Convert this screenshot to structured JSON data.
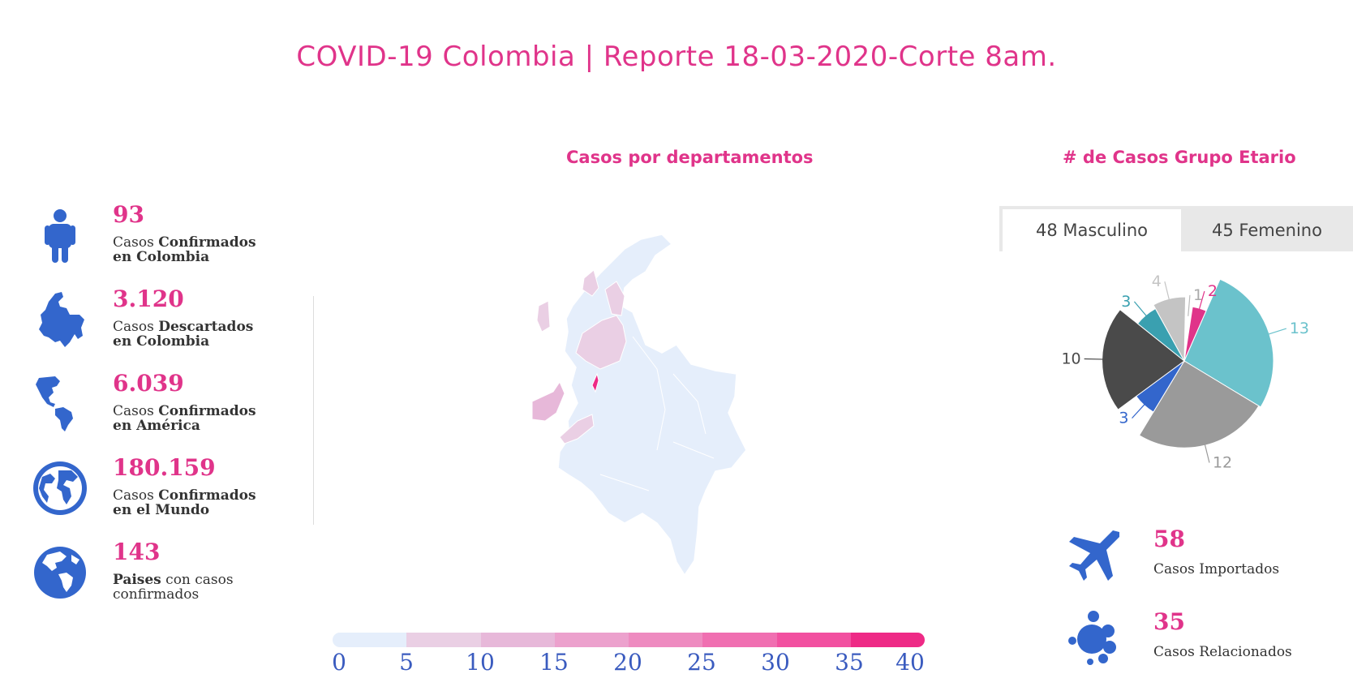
{
  "title": "COVID-19 Colombia | Reporte 18-03-2020-Corte 8am.",
  "map_section": {
    "title": "Casos por departamentos"
  },
  "age_section": {
    "title": "# de Casos Grupo Etario"
  },
  "stats": [
    {
      "value": "93",
      "label_plain": "Casos ",
      "label_bold": "Confirmados",
      "label_line2": "en Colombia",
      "icon": "person-icon"
    },
    {
      "value": "3.120",
      "label_plain": "Casos ",
      "label_bold": "Descartados",
      "label_line2": "en Colombia",
      "icon": "colombia-map-icon"
    },
    {
      "value": "6.039",
      "label_plain": "Casos ",
      "label_bold": "Confirmados",
      "label_line2": "en América",
      "icon": "americas-map-icon"
    },
    {
      "value": "180.159",
      "label_plain": "Casos ",
      "label_bold": "Confirmados",
      "label_line2": "en el Mundo",
      "icon": "globe-world-icon"
    },
    {
      "value": "143",
      "label_bold_first": "Paises",
      "label_plain_after": " con casos",
      "label_line2": "confirmados",
      "icon": "globe-americas-icon"
    }
  ],
  "legend": {
    "ticks": [
      "0",
      "5",
      "10",
      "15",
      "20",
      "25",
      "30",
      "35",
      "40"
    ],
    "colors": [
      "#e5eefb",
      "#eacfe4",
      "#e7b8d9",
      "#eca1cd",
      "#ee8bc0",
      "#f06fb1",
      "#f250a0",
      "#ee2a86"
    ]
  },
  "tabs": [
    {
      "label": "48 Masculino",
      "active": true
    },
    {
      "label": "45 Femenino",
      "active": false
    }
  ],
  "age_chart": {
    "type": "pie",
    "labels": [
      "1",
      "2",
      "13",
      "12",
      "3",
      "10",
      "3",
      "4"
    ],
    "values": [
      1,
      2,
      13,
      12,
      3,
      10,
      3,
      4
    ],
    "colors": [
      "#ffffff",
      "#e0348a",
      "#6bc2cc",
      "#9a9a9a",
      "#3366cc",
      "#4a4a4a",
      "#3aa0b0",
      "#c4c4c4"
    ]
  },
  "side_stats": [
    {
      "value": "58",
      "label": "Casos Importados",
      "icon": "airplane-icon"
    },
    {
      "value": "35",
      "label": "Casos Relacionados",
      "icon": "bubbles-icon"
    }
  ],
  "colors": {
    "accent": "#e0348a",
    "icon_blue": "#3366cc"
  }
}
